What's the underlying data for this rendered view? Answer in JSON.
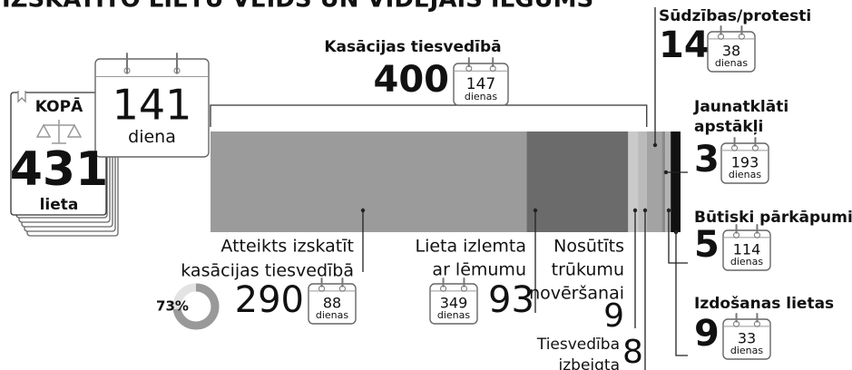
{
  "chart_data": {
    "type": "stacked-bar",
    "title": "IZSKATĪTO LIETU VEIDS UN VIDĒJAIS ILGUMS",
    "total": {
      "label": "KOPĀ",
      "value": 431,
      "unit": "lieta",
      "days": 141,
      "days_unit": "diena"
    },
    "group": {
      "name": "Kasācijas tiesvedībā",
      "value": 400,
      "days": 147
    },
    "days_unit": "dienas",
    "share": 73,
    "share_label": "73%",
    "series": [
      {
        "name": [
          "Atteikts izskatīt",
          "kasācijas tiesvedībā"
        ],
        "value": 290,
        "days": 88,
        "color": "#9b9b9b"
      },
      {
        "name": [
          "Lieta izlemta",
          "ar lēmumu"
        ],
        "value": 93,
        "days": 349,
        "color": "#6b6b6b"
      },
      {
        "name": [
          "Nosūtīts",
          "trūkumu",
          "novēršanai"
        ],
        "value": 9,
        "color": "#cacaca"
      },
      {
        "name": [
          "Tiesvedība",
          "izbeigta"
        ],
        "value": 8,
        "color": "#bababa"
      },
      {
        "name": [
          "Sūdzības/protesti"
        ],
        "value": 14,
        "days": 38,
        "color": "#a3a3a3"
      },
      {
        "name": [
          "Jaunatklāti",
          "apstākļi"
        ],
        "value": 3,
        "days": 193,
        "color": "#8a8a8a"
      },
      {
        "name": [
          "Būtiski pārkāpumi"
        ],
        "value": 5,
        "days": 114,
        "color": "#b3b3b3"
      },
      {
        "name": [
          "Izdošanas lietas"
        ],
        "value": 9,
        "days": 33,
        "color": "#111111"
      }
    ]
  }
}
